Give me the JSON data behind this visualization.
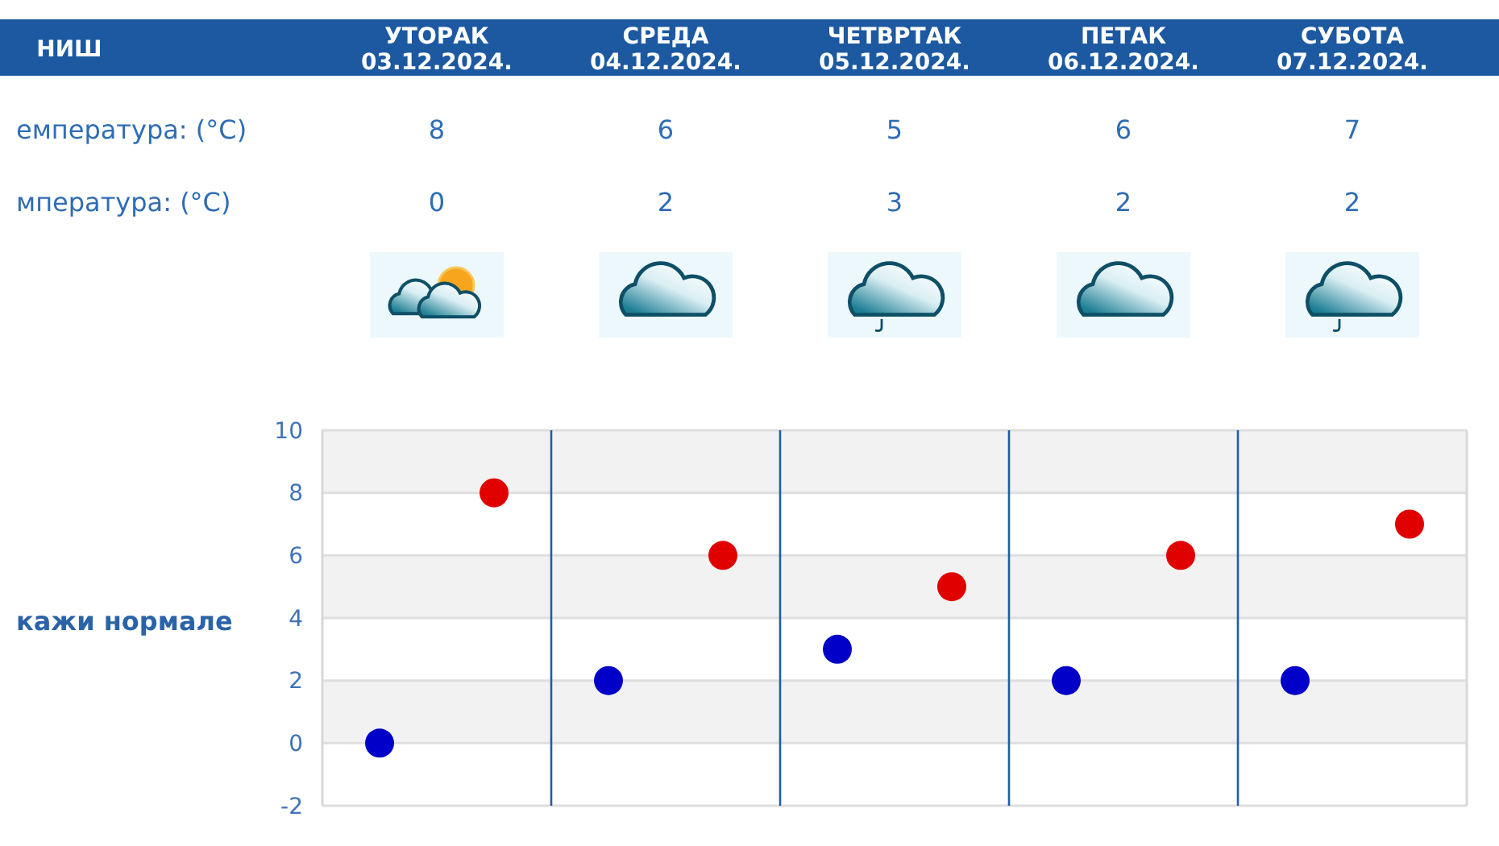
{
  "chart_data": [
    {
      "type": "other",
      "title": "НИШ",
      "categories": [
        "УТОРАК 03.12.2024.",
        "СРЕДА 04.12.2024.",
        "ЧЕТВРТАК 05.12.2024.",
        "ПЕТАК 06.12.2024.",
        "СУБОТА 07.12.2024."
      ],
      "series": [
        {
          "values": [
            8,
            6,
            5,
            6,
            7
          ]
        },
        {
          "values": [
            0,
            2,
            3,
            2,
            2
          ]
        }
      ],
      "data_labels": true,
      "annotations": [
        "емпература: (°C)",
        "мпература: (°C)"
      ]
    },
    {
      "type": "scatter",
      "categories": [
        null,
        null,
        null,
        null,
        null
      ],
      "series": [
        {
          "color": "#e00000",
          "values": [
            8,
            6,
            5,
            6,
            7
          ]
        },
        {
          "color": "#0000c8",
          "values": [
            0,
            2,
            3,
            2,
            2
          ]
        }
      ],
      "ylim": [
        -2,
        10
      ],
      "yticks": [
        -2,
        0,
        2,
        4,
        6,
        8,
        10
      ],
      "grid": true,
      "marker": "circle",
      "annotations": [
        "кажи нормале"
      ]
    }
  ]
}
